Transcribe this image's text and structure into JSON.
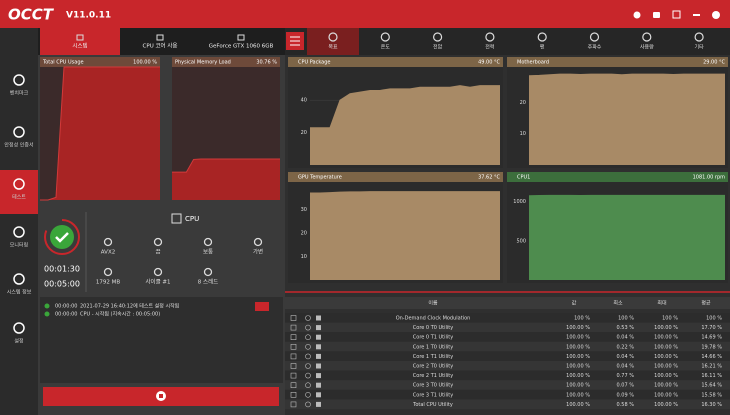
{
  "title_bar": {
    "logo": "OCCT",
    "version": "V11.0.11"
  },
  "sidebar": [
    "벤치마크",
    "안정성 인증서",
    "테스트",
    "모니터링",
    "시스템 정보",
    "설정"
  ],
  "left_tabs": [
    "시스템",
    "CPU 코어 사용",
    "GeForce GTX 1060 6GB"
  ],
  "usage_charts": [
    {
      "title": "Total CPU Usage",
      "value_text": "100.00 %",
      "ylim": [
        0,
        100
      ],
      "values": [
        0,
        0,
        2,
        100,
        100,
        100,
        100,
        100,
        100,
        100,
        100,
        100,
        100,
        100,
        100,
        100
      ]
    },
    {
      "title": "Physical Memory Load",
      "value_text": "30.76 %",
      "ylim": [
        0,
        100
      ],
      "values": [
        21,
        21,
        21,
        30.5,
        30.8,
        30.8,
        30.8,
        30.8,
        30.8,
        30.8,
        30.8,
        30.8,
        30.8,
        30.8,
        30.8,
        30.8
      ]
    }
  ],
  "test": {
    "elapsed": "00:01:30",
    "duration": "00:05:00",
    "name": "CPU",
    "params": [
      "AVX2",
      "끔",
      "보통",
      "가변",
      "1792 MB",
      "사이클 #1",
      "8 스레드"
    ]
  },
  "log": [
    {
      "time": "00:00:00",
      "text": "2021-07-29 16:40:12에 테스트 설정 시작됨"
    },
    {
      "time": "00:00:00",
      "text": "CPU - 시작됨 (지속시간 : 00:05:00)"
    }
  ],
  "monitor_tabs": [
    "목표",
    "온도",
    "전압",
    "전력",
    "팬",
    "주파수",
    "사용량",
    "기타"
  ],
  "sensor_charts": [
    {
      "title": "CPU Package",
      "value_text": "49.00 °C",
      "ylim": [
        0,
        58
      ],
      "yticks": [
        20,
        40
      ],
      "color": "#a88a66",
      "header": "#7d6547",
      "values": [
        23,
        23,
        23,
        40,
        44,
        45,
        46,
        46,
        47,
        47,
        47,
        48,
        48,
        48,
        48,
        49,
        48,
        49,
        49,
        49
      ]
    },
    {
      "title": "Motherboard",
      "value_text": "29.00 °C",
      "ylim": [
        0,
        30
      ],
      "yticks": [
        10,
        20
      ],
      "color": "#a88a66",
      "header": "#7d6547",
      "values": [
        28.5,
        28.6,
        28.8,
        29,
        29,
        28.9,
        29,
        29,
        29,
        28.8,
        29,
        29,
        29,
        29,
        28.9,
        29,
        29,
        29,
        29,
        29
      ]
    },
    {
      "title": "GPU Temperature",
      "value_text": "37.62 °C",
      "ylim": [
        0,
        40
      ],
      "yticks": [
        10,
        20,
        30
      ],
      "color": "#a88a66",
      "header": "#7d6547",
      "values": [
        37,
        37,
        37.2,
        37.4,
        37.5,
        37.5,
        37.6,
        37.6,
        37.6,
        37.6,
        37.6,
        37.6,
        37.6,
        37.6,
        37.6,
        37.6,
        37.6,
        37.6,
        37.6,
        37.6
      ]
    },
    {
      "title": "CPU1",
      "value_text": "1081.00 rpm",
      "ylim": [
        0,
        1200
      ],
      "yticks": [
        500,
        1000
      ],
      "color": "#4e8c4e",
      "header": "#3c6e3c",
      "values": [
        1075,
        1078,
        1081,
        1080,
        1081,
        1079,
        1081,
        1081,
        1080,
        1081,
        1081,
        1081,
        1080,
        1081,
        1081,
        1081,
        1081,
        1081,
        1081,
        1081
      ]
    }
  ],
  "table": {
    "columns": [
      "이름",
      "값",
      "최소",
      "최대",
      "평균"
    ],
    "rows": [
      [
        "On-Demand Clock Modulation",
        "100 %",
        "100 %",
        "100 %",
        "100 %"
      ],
      [
        "Core 0 T0 Utility",
        "100.00 %",
        "0.53 %",
        "100.00 %",
        "17.70 %"
      ],
      [
        "Core 0 T1 Utility",
        "100.00 %",
        "0.04 %",
        "100.00 %",
        "14.69 %"
      ],
      [
        "Core 1 T0 Utility",
        "100.00 %",
        "0.22 %",
        "100.00 %",
        "19.78 %"
      ],
      [
        "Core 1 T1 Utility",
        "100.00 %",
        "0.04 %",
        "100.00 %",
        "14.66 %"
      ],
      [
        "Core 2 T0 Utility",
        "100.00 %",
        "0.04 %",
        "100.00 %",
        "16.21 %"
      ],
      [
        "Core 2 T1 Utility",
        "100.00 %",
        "0.77 %",
        "100.00 %",
        "16.11 %"
      ],
      [
        "Core 3 T0 Utility",
        "100.00 %",
        "0.07 %",
        "100.00 %",
        "15.64 %"
      ],
      [
        "Core 3 T1 Utility",
        "100.00 %",
        "0.09 %",
        "100.00 %",
        "15.58 %"
      ],
      [
        "Total CPU Utility",
        "100.00 %",
        "0.58 %",
        "100.00 %",
        "16.30 %"
      ]
    ]
  }
}
